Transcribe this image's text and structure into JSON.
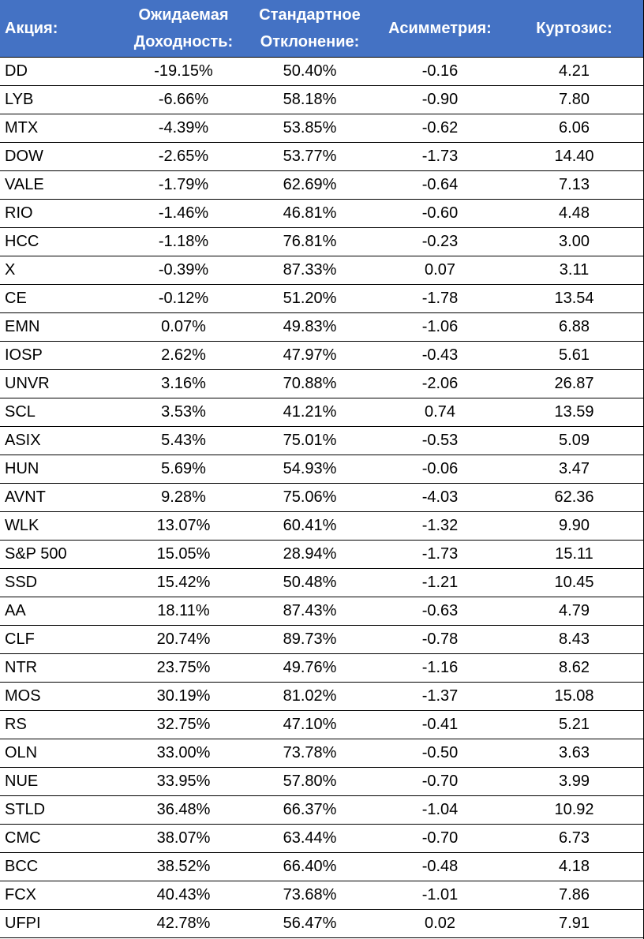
{
  "table": {
    "header": [
      "Акция:",
      "Ожидаемая Доходность:",
      "Стандартное Отклонение:",
      "Асимметрия:",
      "Куртозис:"
    ],
    "rows": [
      [
        "DD",
        "-19.15%",
        "50.40%",
        "-0.16",
        "4.21"
      ],
      [
        "LYB",
        "-6.66%",
        "58.18%",
        "-0.90",
        "7.80"
      ],
      [
        "MTX",
        "-4.39%",
        "53.85%",
        "-0.62",
        "6.06"
      ],
      [
        "DOW",
        "-2.65%",
        "53.77%",
        "-1.73",
        "14.40"
      ],
      [
        "VALE",
        "-1.79%",
        "62.69%",
        "-0.64",
        "7.13"
      ],
      [
        "RIO",
        "-1.46%",
        "46.81%",
        "-0.60",
        "4.48"
      ],
      [
        "HCC",
        "-1.18%",
        "76.81%",
        "-0.23",
        "3.00"
      ],
      [
        "X",
        "-0.39%",
        "87.33%",
        "0.07",
        "3.11"
      ],
      [
        "CE",
        "-0.12%",
        "51.20%",
        "-1.78",
        "13.54"
      ],
      [
        "EMN",
        "0.07%",
        "49.83%",
        "-1.06",
        "6.88"
      ],
      [
        "IOSP",
        "2.62%",
        "47.97%",
        "-0.43",
        "5.61"
      ],
      [
        "UNVR",
        "3.16%",
        "70.88%",
        "-2.06",
        "26.87"
      ],
      [
        "SCL",
        "3.53%",
        "41.21%",
        "0.74",
        "13.59"
      ],
      [
        "ASIX",
        "5.43%",
        "75.01%",
        "-0.53",
        "5.09"
      ],
      [
        "HUN",
        "5.69%",
        "54.93%",
        "-0.06",
        "3.47"
      ],
      [
        "AVNT",
        "9.28%",
        "75.06%",
        "-4.03",
        "62.36"
      ],
      [
        "WLK",
        "13.07%",
        "60.41%",
        "-1.32",
        "9.90"
      ],
      [
        "S&P 500",
        "15.05%",
        "28.94%",
        "-1.73",
        "15.11"
      ],
      [
        "SSD",
        "15.42%",
        "50.48%",
        "-1.21",
        "10.45"
      ],
      [
        "AA",
        "18.11%",
        "87.43%",
        "-0.63",
        "4.79"
      ],
      [
        "CLF",
        "20.74%",
        "89.73%",
        "-0.78",
        "8.43"
      ],
      [
        "NTR",
        "23.75%",
        "49.76%",
        "-1.16",
        "8.62"
      ],
      [
        "MOS",
        "30.19%",
        "81.02%",
        "-1.37",
        "15.08"
      ],
      [
        "RS",
        "32.75%",
        "47.10%",
        "-0.41",
        "5.21"
      ],
      [
        "OLN",
        "33.00%",
        "73.78%",
        "-0.50",
        "3.63"
      ],
      [
        "NUE",
        "33.95%",
        "57.80%",
        "-0.70",
        "3.99"
      ],
      [
        "STLD",
        "36.48%",
        "66.37%",
        "-1.04",
        "10.92"
      ],
      [
        "CMC",
        "38.07%",
        "63.44%",
        "-0.70",
        "6.73"
      ],
      [
        "BCC",
        "38.52%",
        "66.40%",
        "-0.48",
        "4.18"
      ],
      [
        "FCX",
        "40.43%",
        "73.68%",
        "-1.01",
        "7.86"
      ],
      [
        "UFPI",
        "42.78%",
        "56.47%",
        "0.02",
        "7.91"
      ]
    ]
  }
}
